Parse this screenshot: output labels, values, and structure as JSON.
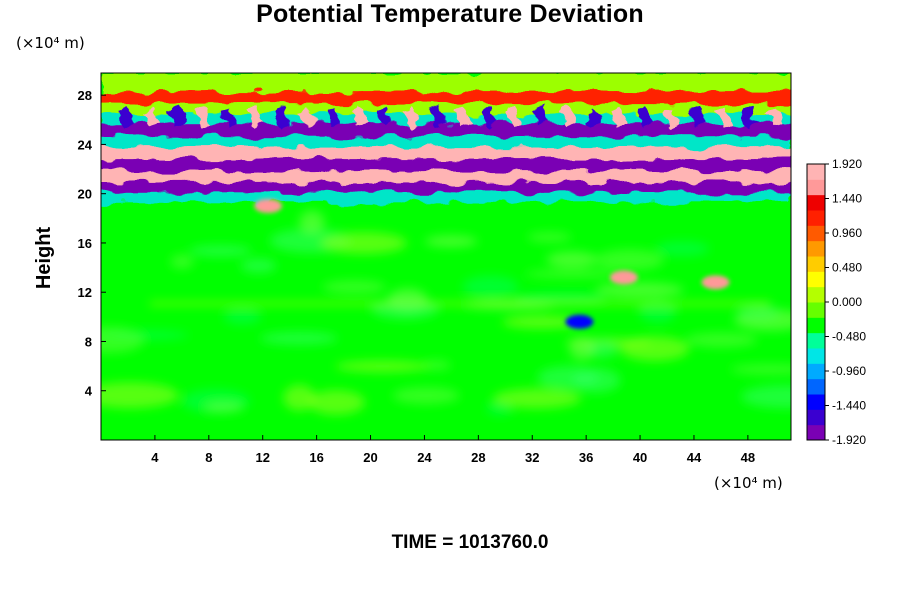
{
  "chart_data": {
    "type": "heatmap",
    "title": "Potential Temperature Deviation",
    "ylabel": "Height",
    "x_unit": "(×10⁴ m)",
    "y_unit": "(×10⁴ m)",
    "x_ticks": [
      "4",
      "8",
      "12",
      "16",
      "20",
      "24",
      "28",
      "32",
      "36",
      "40",
      "44",
      "48"
    ],
    "y_ticks": [
      "4",
      "8",
      "12",
      "16",
      "20",
      "24",
      "28"
    ],
    "xlim": [
      0,
      51.2
    ],
    "ylim": [
      0,
      29.8
    ],
    "colorbar": {
      "labels": [
        "1.920",
        "1.440",
        "0.960",
        "0.480",
        "0.000",
        "-0.480",
        "-0.960",
        "-1.440",
        "-1.920"
      ],
      "min": -1.92,
      "max": 1.92,
      "palette": [
        "#7a00b4",
        "#3a00d0",
        "#0000ff",
        "#0066ff",
        "#00aaff",
        "#00e6e6",
        "#00ff99",
        "#00ff00",
        "#66ff00",
        "#b4ff00",
        "#ffff00",
        "#ffcc00",
        "#ff9900",
        "#ff5a00",
        "#ff2000",
        "#ee0000",
        "#ff9999",
        "#ffb4b4"
      ]
    },
    "bands": [
      {
        "y": 20.6,
        "value": -1.92
      },
      {
        "y": 21.4,
        "value": 1.92
      },
      {
        "y": 22.4,
        "value": -1.92
      },
      {
        "y": 23.3,
        "value": 1.92
      },
      {
        "y": 25.2,
        "value": -1.92
      },
      {
        "y": 27.8,
        "value": 1.2
      }
    ],
    "anomalies": [
      {
        "x": 12.4,
        "y": 19.0,
        "value": 1.6
      },
      {
        "x": 38.8,
        "y": 13.2,
        "value": 1.7
      },
      {
        "x": 45.6,
        "y": 12.8,
        "value": 1.6
      },
      {
        "x": 35.5,
        "y": 9.6,
        "value": -1.3
      }
    ]
  },
  "footer": {
    "time_label": "TIME = 1013760.0"
  },
  "colors": {
    "background": "#ffffff",
    "field": "#00ff00"
  }
}
